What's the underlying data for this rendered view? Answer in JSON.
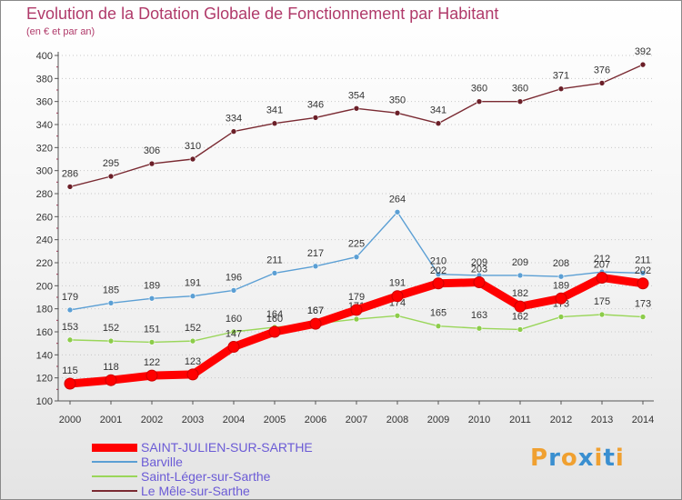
{
  "header": {
    "title": "Evolution de la Dotation Globale de Fonctionnement par Habitant",
    "subtitle": "(en € et par an)"
  },
  "logo": {
    "text": "Proxiti",
    "letters": [
      {
        "char": "P",
        "color": "#f0a030"
      },
      {
        "char": "r",
        "color": "#3a8fd0"
      },
      {
        "char": "o",
        "color": "#f0a030"
      },
      {
        "char": "x",
        "color": "#3a8fd0"
      },
      {
        "char": "i",
        "color": "#f0a030"
      },
      {
        "char": "t",
        "color": "#3a8fd0"
      },
      {
        "char": "i",
        "color": "#f0a030"
      }
    ]
  },
  "chart_data": {
    "type": "line",
    "title": "Evolution de la Dotation Globale de Fonctionnement par Habitant",
    "subtitle": "(en € et par an)",
    "xlabel": "",
    "ylabel": "",
    "x": [
      "2000",
      "2001",
      "2002",
      "2003",
      "2004",
      "2005",
      "2006",
      "2007",
      "2008",
      "2009",
      "2010",
      "2011",
      "2012",
      "2013",
      "2014"
    ],
    "ylim": [
      100,
      400
    ],
    "yticks": [
      100,
      120,
      140,
      160,
      180,
      200,
      220,
      240,
      260,
      280,
      300,
      320,
      340,
      360,
      380,
      400
    ],
    "grid": "horizontal dotted",
    "legend_position": "bottom-left",
    "series": [
      {
        "name": "Le Mêle-sur-Sarthe",
        "color": "#7a2a32",
        "marker": "#6b1f28",
        "width": 1.4,
        "values": [
          286,
          295,
          306,
          310,
          334,
          341,
          346,
          354,
          350,
          341,
          360,
          360,
          371,
          376,
          392
        ],
        "labels": [
          "286",
          "295",
          "306",
          "310",
          "334",
          "341",
          "346",
          "354",
          "350",
          "341",
          "360",
          "360",
          "371",
          "376",
          "392"
        ]
      },
      {
        "name": "Barville",
        "color": "#5b9fd4",
        "marker": "#5b9fd4",
        "width": 1.4,
        "values": [
          179,
          185,
          189,
          191,
          196,
          211,
          217,
          225,
          264,
          210,
          209,
          209,
          208,
          212,
          211
        ],
        "labels": [
          "179",
          "185",
          "189",
          "191",
          "196",
          "211",
          "217",
          "225",
          "264",
          "210",
          "209",
          "209",
          "208",
          "212",
          "211"
        ]
      },
      {
        "name": "Saint-Léger-sur-Sarthe",
        "color": "#9ad65a",
        "marker": "#8ccc4a",
        "width": 1.4,
        "values": [
          153,
          152,
          151,
          152,
          160,
          164,
          167,
          171,
          174,
          165,
          163,
          162,
          173,
          175,
          173
        ],
        "labels": [
          "153",
          "152",
          "151",
          "152",
          "160",
          "164",
          "167",
          "171",
          "174",
          "165",
          "163",
          "162",
          "173",
          "175",
          "173"
        ]
      },
      {
        "name": "SAINT-JULIEN-SUR-SARTHE",
        "color": "#ff0000",
        "marker": "#ff0000",
        "width": 9,
        "values": [
          115,
          118,
          122,
          123,
          147,
          160,
          167,
          179,
          191,
          202,
          203,
          182,
          189,
          207,
          202
        ],
        "labels": [
          "115",
          "118",
          "122",
          "123",
          "147",
          "160",
          "167",
          "179",
          "191",
          "202",
          "203",
          "182",
          "189",
          "207",
          "202"
        ]
      }
    ],
    "legend": [
      {
        "name": "SAINT-JULIEN-SUR-SARTHE",
        "color": "#ff0000",
        "thickness": 9
      },
      {
        "name": "Barville",
        "color": "#5b9fd4",
        "thickness": 2
      },
      {
        "name": "Saint-Léger-sur-Sarthe",
        "color": "#9ad65a",
        "thickness": 2
      },
      {
        "name": "Le Mêle-sur-Sarthe",
        "color": "#7a2a32",
        "thickness": 2
      }
    ]
  }
}
